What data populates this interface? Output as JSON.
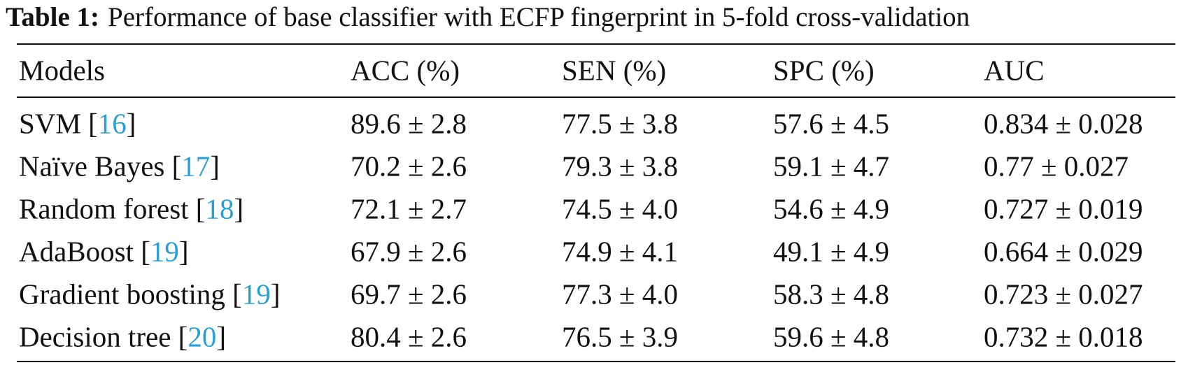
{
  "caption": {
    "label": "Table 1:",
    "text": "Performance of base classifier with ECFP fingerprint in 5-fold cross-validation"
  },
  "table": {
    "headers": [
      "Models",
      "ACC (%)",
      "SEN (%)",
      "SPC (%)",
      "AUC"
    ],
    "rows": [
      {
        "model": [
          "SVM [",
          "16",
          "]"
        ],
        "values": [
          "89.6 ± 2.8",
          "77.5 ± 3.8",
          "57.6 ± 4.5",
          "0.834 ± 0.028"
        ]
      },
      {
        "model": [
          "Naïve Bayes [",
          "17",
          "]"
        ],
        "values": [
          "70.2 ± 2.6",
          "79.3 ± 3.8",
          "59.1 ± 4.7",
          "0.77 ± 0.027"
        ]
      },
      {
        "model": [
          "Random forest [",
          "18",
          "]"
        ],
        "values": [
          "72.1 ± 2.7",
          "74.5 ± 4.0",
          "54.6 ± 4.9",
          "0.727 ± 0.019"
        ]
      },
      {
        "model": [
          "AdaBoost [",
          "19",
          "]"
        ],
        "values": [
          "67.9 ± 2.6",
          "74.9 ± 4.1",
          "49.1 ± 4.9",
          "0.664 ± 0.029"
        ]
      },
      {
        "model": [
          "Gradient boosting [",
          "19",
          "]"
        ],
        "values": [
          "69.7 ± 2.6",
          "77.3 ± 4.0",
          "58.3 ± 4.8",
          "0.723 ± 0.027"
        ]
      },
      {
        "model": [
          "Decision tree [",
          "20",
          "]"
        ],
        "values": [
          "80.4 ± 2.6",
          "76.5 ± 3.9",
          "59.6 ± 4.8",
          "0.732 ± 0.018"
        ]
      }
    ]
  }
}
